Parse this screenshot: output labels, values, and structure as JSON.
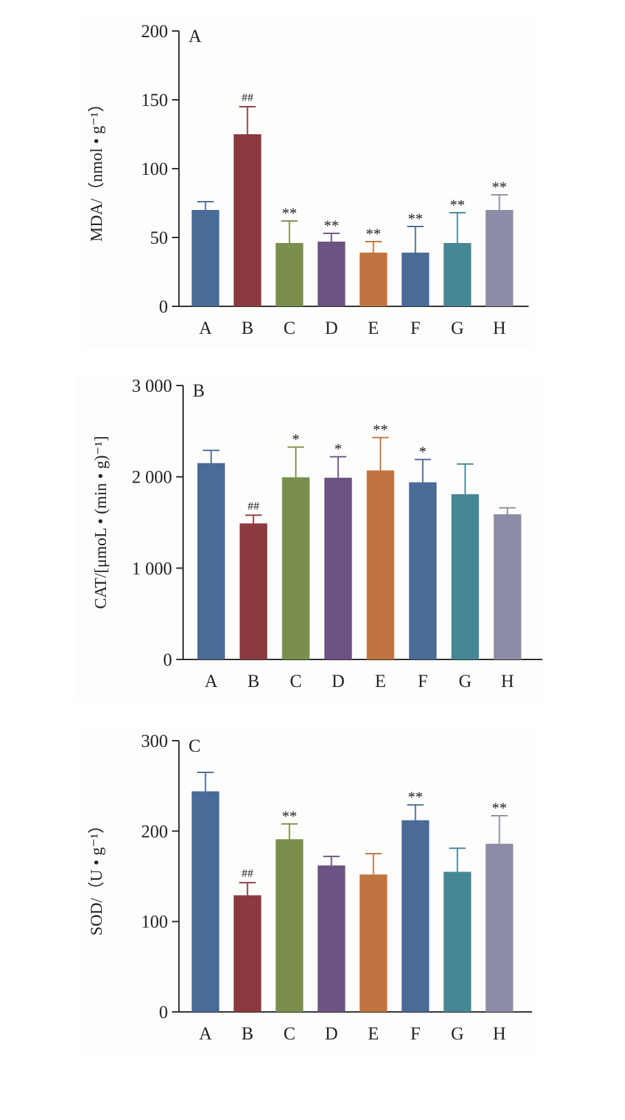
{
  "chart_data": [
    {
      "type": "bar",
      "panel_label": "A",
      "ylabel": "MDA/（nmol • g⁻¹）",
      "categories": [
        "A",
        "B",
        "C",
        "D",
        "E",
        "F",
        "G",
        "H"
      ],
      "values": [
        70,
        125,
        46,
        47,
        39,
        39,
        46,
        70
      ],
      "errors": [
        6,
        20,
        16,
        6,
        8,
        19,
        22,
        11
      ],
      "annotations": [
        "",
        "##",
        "**",
        "**",
        "**",
        "**",
        "**",
        "**"
      ],
      "ylim": [
        0,
        200
      ],
      "yticks": [
        0,
        50,
        100,
        150,
        200
      ],
      "ytick_labels": [
        "0",
        "50",
        "100",
        "150",
        "200"
      ],
      "colors": [
        "#4a6a98",
        "#8b3a3f",
        "#7a8f4d",
        "#6c5383",
        "#c0743f",
        "#4a6a98",
        "#468795",
        "#8c8ca6"
      ]
    },
    {
      "type": "bar",
      "panel_label": "B",
      "ylabel": "CAT/[μmoL • (min • g)⁻¹]",
      "categories": [
        "A",
        "B",
        "C",
        "D",
        "E",
        "F",
        "G",
        "H"
      ],
      "values": [
        2150,
        1490,
        1995,
        1990,
        2070,
        1940,
        1810,
        1590
      ],
      "errors": [
        140,
        90,
        330,
        230,
        360,
        250,
        330,
        70
      ],
      "annotations": [
        "",
        "##",
        "*",
        "*",
        "**",
        "*",
        "",
        ""
      ],
      "ylim": [
        0,
        3000
      ],
      "yticks": [
        0,
        1000,
        2000,
        3000
      ],
      "ytick_labels": [
        "0",
        "1 000",
        "2 000",
        "3 000"
      ],
      "colors": [
        "#4a6a98",
        "#8b3a3f",
        "#7a8f4d",
        "#6c5383",
        "#c0743f",
        "#4a6a98",
        "#468795",
        "#8c8ca6"
      ]
    },
    {
      "type": "bar",
      "panel_label": "C",
      "ylabel": "SOD/（U • g⁻¹）",
      "categories": [
        "A",
        "B",
        "C",
        "D",
        "E",
        "F",
        "G",
        "H"
      ],
      "values": [
        244,
        129,
        191,
        162,
        152,
        212,
        155,
        186
      ],
      "errors": [
        21,
        14,
        17,
        10,
        23,
        17,
        26,
        31
      ],
      "annotations": [
        "",
        "##",
        "**",
        "",
        "",
        "**",
        "",
        "**"
      ],
      "ylim": [
        0,
        300
      ],
      "yticks": [
        0,
        100,
        200,
        300
      ],
      "ytick_labels": [
        "0",
        "100",
        "200",
        "300"
      ],
      "colors": [
        "#4a6a98",
        "#8b3a3f",
        "#7a8f4d",
        "#6c5383",
        "#c0743f",
        "#4a6a98",
        "#468795",
        "#8c8ca6"
      ]
    }
  ]
}
